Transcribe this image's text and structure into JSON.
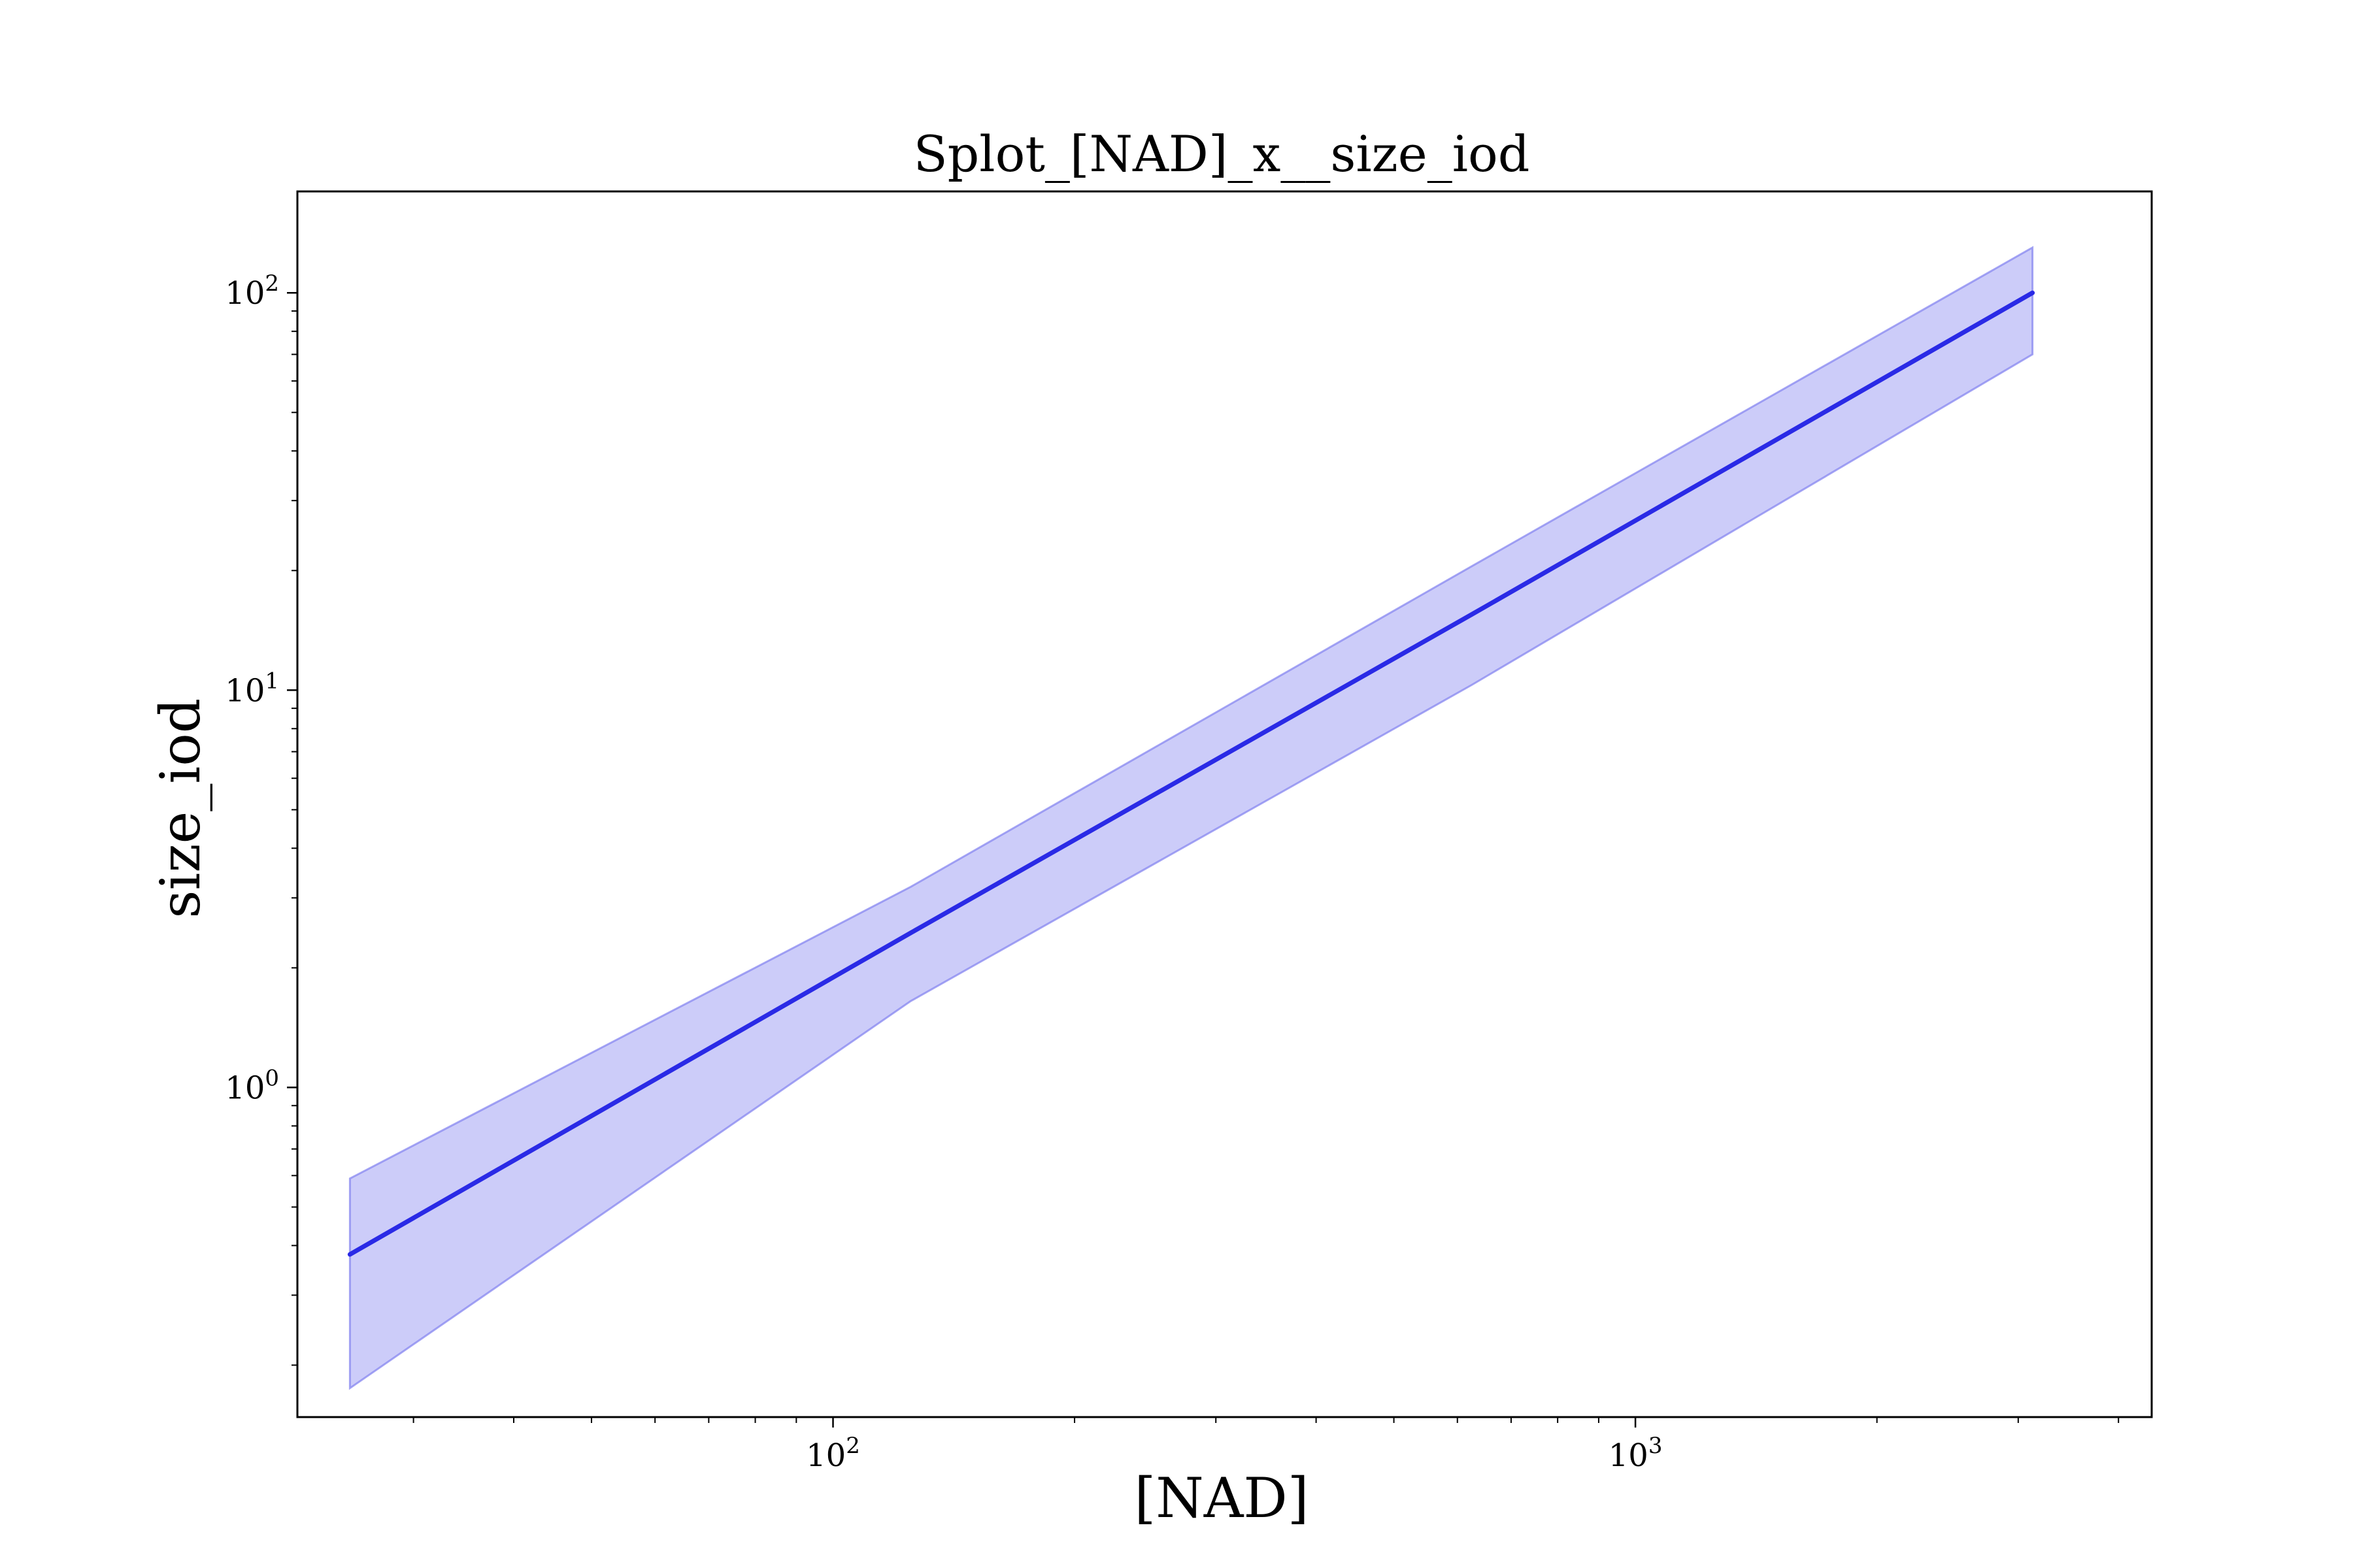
{
  "chart_data": {
    "type": "line",
    "title": "Splot_[NAD]_x__size_iod",
    "xlabel": "[NAD]",
    "ylabel": "size_iod",
    "xscale": "log",
    "yscale": "log",
    "xlim": [
      21.5,
      4400
    ],
    "ylim": [
      0.148,
      180
    ],
    "grid": false,
    "x_ticks": [
      {
        "base": "10",
        "exp": "2",
        "value": 100
      },
      {
        "base": "10",
        "exp": "3",
        "value": 1000
      }
    ],
    "y_ticks": [
      {
        "base": "10",
        "exp": "0",
        "value": 1
      },
      {
        "base": "10",
        "exp": "1",
        "value": 10
      },
      {
        "base": "10",
        "exp": "2",
        "value": 100
      }
    ],
    "series": [
      {
        "color": "#2a2ae6",
        "x": [
          25,
          125,
          625,
          3125
        ],
        "y": [
          0.38,
          2.45,
          15.5,
          100
        ],
        "band_low": [
          0.175,
          1.65,
          10.3,
          70
        ],
        "band_high": [
          0.59,
          3.2,
          20.5,
          130
        ],
        "band_color": "#8080f0"
      }
    ]
  }
}
